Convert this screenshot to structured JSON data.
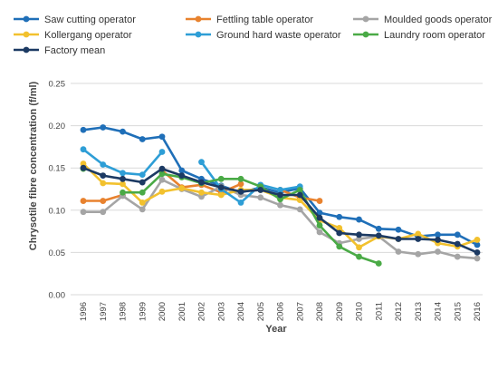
{
  "chart_data": {
    "type": "line",
    "xlabel": "Year",
    "ylabel": "Chrysotile fibre concentration (f/ml)",
    "ylim": [
      0,
      0.25
    ],
    "yticks": [
      "0.00",
      "0.05",
      "0.10",
      "0.15",
      "0.20",
      "0.25"
    ],
    "grid": true,
    "legend_position": "top",
    "categories": [
      "1996",
      "1997",
      "1998",
      "1999",
      "2000",
      "2001",
      "2002",
      "2003",
      "2004",
      "2005",
      "2006",
      "2007",
      "2008",
      "2009",
      "2010",
      "2011",
      "2012",
      "2013",
      "2014",
      "2015",
      "2016"
    ],
    "series": [
      {
        "name": "Saw cutting operator",
        "color": "#1f6fb8",
        "values": [
          0.195,
          0.198,
          0.193,
          0.184,
          0.187,
          0.147,
          0.137,
          0.129,
          0.121,
          0.127,
          0.121,
          0.126,
          0.097,
          0.092,
          0.089,
          0.078,
          0.077,
          0.069,
          0.071,
          0.071,
          0.059
        ]
      },
      {
        "name": "Fettling table operator",
        "color": "#e8822e",
        "values": [
          0.111,
          0.111,
          0.118,
          null,
          0.147,
          0.127,
          0.13,
          0.121,
          0.131,
          null,
          0.124,
          0.115,
          0.111,
          null,
          null,
          null,
          null,
          null,
          null,
          null,
          null
        ]
      },
      {
        "name": "Moulded goods operator",
        "color": "#a5a5a5",
        "values": [
          0.098,
          0.098,
          0.117,
          0.101,
          0.136,
          0.125,
          0.116,
          0.128,
          0.118,
          0.115,
          0.106,
          0.101,
          0.074,
          0.061,
          0.066,
          0.069,
          0.051,
          0.048,
          0.051,
          0.045,
          0.043
        ]
      },
      {
        "name": "Kollergang operator",
        "color": "#f2c12e",
        "values": [
          0.155,
          0.132,
          0.131,
          0.109,
          0.122,
          0.126,
          0.121,
          0.118,
          0.124,
          0.124,
          0.115,
          0.112,
          0.088,
          0.079,
          0.056,
          0.069,
          0.066,
          0.072,
          0.061,
          0.057,
          0.065
        ]
      },
      {
        "name": "Ground hard waste operator",
        "color": "#2e9ed6",
        "values": [
          0.172,
          0.154,
          0.144,
          0.142,
          0.169,
          null,
          0.157,
          0.125,
          0.109,
          0.13,
          0.124,
          0.128,
          null,
          null,
          null,
          null,
          null,
          null,
          null,
          null,
          null
        ]
      },
      {
        "name": "Laundry room operator",
        "color": "#4aaa46",
        "values": [
          0.149,
          null,
          0.121,
          0.121,
          0.143,
          0.139,
          0.132,
          0.137,
          0.137,
          0.128,
          0.113,
          0.124,
          0.082,
          0.057,
          0.045,
          0.037,
          null,
          null,
          null,
          null,
          null
        ]
      },
      {
        "name": "Factory mean",
        "color": "#1c3a63",
        "values": [
          0.15,
          0.141,
          0.137,
          0.133,
          0.149,
          0.141,
          0.133,
          0.127,
          0.122,
          0.124,
          0.118,
          0.118,
          0.091,
          0.073,
          0.071,
          0.07,
          0.066,
          0.066,
          0.065,
          0.06,
          0.05
        ]
      }
    ]
  }
}
